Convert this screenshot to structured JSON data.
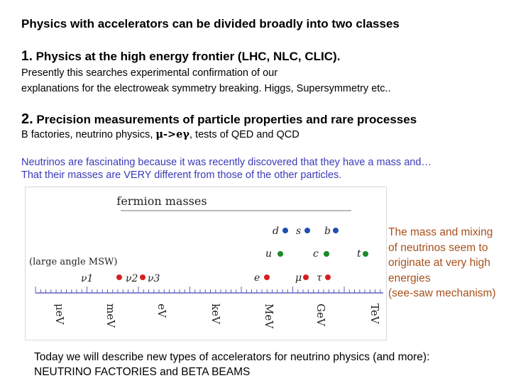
{
  "title": "Physics with accelerators can be divided broadly into two classes",
  "point1": {
    "number": "1.",
    "heading": "Physics at the high energy frontier (LHC, NLC, CLIC).",
    "body_line1": "Presently this searches experimental confirmation of our",
    "body_line2": "explanations for the electroweak symmetry breaking. Higgs, Supersymmetry etc.."
  },
  "point2": {
    "number": "2.",
    "heading": "Precision measurements of particle properties and rare processes",
    "body_pre": "B factories, neutrino physics, ",
    "body_greek": "μ->eγ",
    "body_post": ", tests of QED and  QCD"
  },
  "neutrinos": {
    "line1": "Neutrinos are fascinating because it was recently discovered that they have a mass and…",
    "line2": "That their masses are VERY different from those of the other particles."
  },
  "figure": {
    "title": "fermion masses",
    "msw_label": "(large angle MSW)",
    "axis_labels": [
      "μeV",
      "meV",
      "eV",
      "keV",
      "MeV",
      "GeV",
      "TeV"
    ],
    "quarks_row1": [
      "d",
      "s",
      "b"
    ],
    "quarks_row2": [
      "u",
      "c",
      "t"
    ],
    "leptons": [
      "e",
      "μ",
      "τ"
    ],
    "neutrinos": [
      "ν1",
      "ν2",
      "ν3"
    ],
    "colors": {
      "down_quarks": "#1f4fb0",
      "up_quarks": "#1a8a2a",
      "leptons": "#d62020"
    }
  },
  "side_note": {
    "lines": [
      "The mass and mixing",
      "of neutrinos seem to",
      "originate at very high",
      "energies",
      "(see-saw mechanism)"
    ]
  },
  "closing": {
    "line1": "Today we will describe new types of accelerators for neutrino physics (and more):",
    "line2": "NEUTRINO FACTORIES and BETA BEAMS"
  }
}
